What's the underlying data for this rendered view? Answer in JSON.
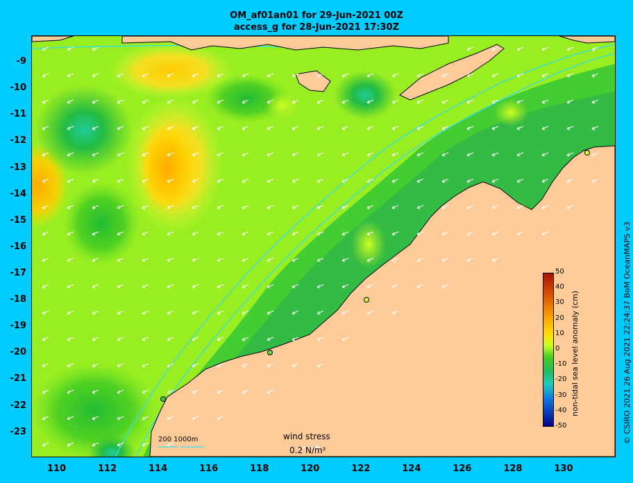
{
  "header": {
    "title_line1": "OM_af01an01 for 29-Jun-2021 00Z",
    "title_line2": "access_g for 28-Jun-2021 17:30Z"
  },
  "axes": {
    "lat_labels": [
      "-9",
      "-10",
      "-11",
      "-12",
      "-13",
      "-14",
      "-15",
      "-16",
      "-17",
      "-18",
      "-19",
      "-20",
      "-21",
      "-22",
      "-23"
    ],
    "lat_values": [
      -9,
      -10,
      -11,
      -12,
      -13,
      -14,
      -15,
      -16,
      -17,
      -18,
      -19,
      -20,
      -21,
      -22,
      -23
    ],
    "lon_labels": [
      "110",
      "112",
      "114",
      "116",
      "118",
      "120",
      "122",
      "124",
      "126",
      "128",
      "130"
    ],
    "lon_values": [
      110,
      112,
      114,
      116,
      118,
      120,
      122,
      124,
      126,
      128,
      130
    ],
    "lon_range": [
      109,
      132
    ],
    "lat_range": [
      -23.9,
      -8.0
    ]
  },
  "colorbar": {
    "title": "non-tidal sea level anomaly (cm)",
    "tick_labels": [
      "50",
      "40",
      "30",
      "20",
      "10",
      "0",
      "-10",
      "-20",
      "-30",
      "-40",
      "-50"
    ],
    "range": [
      -50,
      50
    ]
  },
  "legend": {
    "wind_stress_title": "wind stress",
    "wind_stress_value": "0.2 N/m²",
    "contour_label": "200  1000m"
  },
  "credit": "© CSIRO 2021  26 Aug 2021 22:24:37 BoM OceanMAPS v3",
  "colors": {
    "background": "#00ccff",
    "land": "#ffcc99",
    "contour": "#33ddee",
    "arrow": "#ffffff"
  }
}
